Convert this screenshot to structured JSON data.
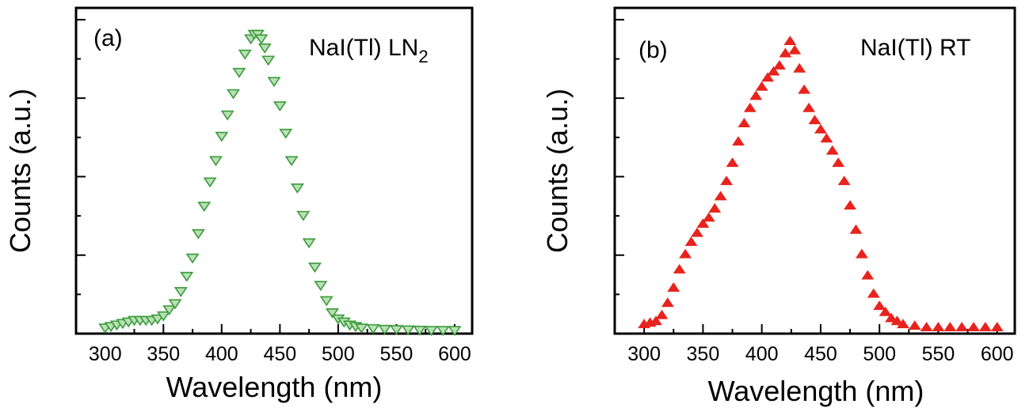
{
  "chart_data": [
    {
      "type": "scatter",
      "panel_label": "(a)",
      "title_main": "NaI(Tl) LN",
      "title_sub": "2",
      "xlabel": "Wavelength (nm)",
      "ylabel": "Counts (a.u.)",
      "xlim": [
        275,
        615
      ],
      "ylim": [
        0,
        1.07
      ],
      "xticks": [
        "300",
        "350",
        "400",
        "450",
        "500",
        "550",
        "600"
      ],
      "marker": "down-triangle",
      "color": "#3a9a3a",
      "points": [
        [
          300,
          0.02
        ],
        [
          305,
          0.025
        ],
        [
          310,
          0.03
        ],
        [
          315,
          0.035
        ],
        [
          320,
          0.04
        ],
        [
          325,
          0.045
        ],
        [
          330,
          0.045
        ],
        [
          335,
          0.045
        ],
        [
          340,
          0.045
        ],
        [
          345,
          0.05
        ],
        [
          350,
          0.06
        ],
        [
          355,
          0.08
        ],
        [
          360,
          0.1
        ],
        [
          365,
          0.14
        ],
        [
          370,
          0.19
        ],
        [
          375,
          0.25
        ],
        [
          380,
          0.33
        ],
        [
          385,
          0.42
        ],
        [
          390,
          0.5
        ],
        [
          395,
          0.57
        ],
        [
          400,
          0.65
        ],
        [
          405,
          0.72
        ],
        [
          410,
          0.79
        ],
        [
          415,
          0.86
        ],
        [
          420,
          0.92
        ],
        [
          425,
          0.97
        ],
        [
          428,
          0.985
        ],
        [
          431,
          0.985
        ],
        [
          434,
          0.97
        ],
        [
          437,
          0.94
        ],
        [
          440,
          0.9
        ],
        [
          445,
          0.83
        ],
        [
          450,
          0.75
        ],
        [
          455,
          0.66
        ],
        [
          460,
          0.57
        ],
        [
          465,
          0.48
        ],
        [
          470,
          0.39
        ],
        [
          475,
          0.3
        ],
        [
          480,
          0.22
        ],
        [
          485,
          0.16
        ],
        [
          490,
          0.11
        ],
        [
          495,
          0.07
        ],
        [
          500,
          0.05
        ],
        [
          505,
          0.04
        ],
        [
          510,
          0.03
        ],
        [
          515,
          0.025
        ],
        [
          520,
          0.02
        ],
        [
          530,
          0.018
        ],
        [
          540,
          0.016
        ],
        [
          550,
          0.015
        ],
        [
          560,
          0.014
        ],
        [
          570,
          0.013
        ],
        [
          580,
          0.012
        ],
        [
          590,
          0.012
        ],
        [
          600,
          0.012
        ]
      ]
    },
    {
      "type": "scatter",
      "panel_label": "(b)",
      "title_main": "NaI(Tl) RT",
      "title_sub": "",
      "xlabel": "Wavelength (nm)",
      "ylabel": "Counts (a.u.)",
      "xlim": [
        275,
        615
      ],
      "ylim": [
        0,
        1.07
      ],
      "xticks": [
        "300",
        "350",
        "400",
        "450",
        "500",
        "550",
        "600"
      ],
      "marker": "up-triangle",
      "color": "#e8231d",
      "points": [
        [
          300,
          0.03
        ],
        [
          305,
          0.035
        ],
        [
          310,
          0.04
        ],
        [
          315,
          0.06
        ],
        [
          320,
          0.1
        ],
        [
          325,
          0.15
        ],
        [
          330,
          0.21
        ],
        [
          335,
          0.26
        ],
        [
          340,
          0.3
        ],
        [
          345,
          0.33
        ],
        [
          350,
          0.36
        ],
        [
          355,
          0.38
        ],
        [
          360,
          0.41
        ],
        [
          365,
          0.45
        ],
        [
          370,
          0.5
        ],
        [
          375,
          0.56
        ],
        [
          380,
          0.63
        ],
        [
          385,
          0.69
        ],
        [
          390,
          0.74
        ],
        [
          395,
          0.78
        ],
        [
          400,
          0.81
        ],
        [
          405,
          0.84
        ],
        [
          410,
          0.86
        ],
        [
          415,
          0.88
        ],
        [
          420,
          0.92
        ],
        [
          424,
          0.96
        ],
        [
          428,
          0.93
        ],
        [
          432,
          0.87
        ],
        [
          436,
          0.8
        ],
        [
          440,
          0.74
        ],
        [
          445,
          0.7
        ],
        [
          450,
          0.67
        ],
        [
          455,
          0.64
        ],
        [
          460,
          0.6
        ],
        [
          465,
          0.56
        ],
        [
          470,
          0.5
        ],
        [
          475,
          0.42
        ],
        [
          480,
          0.34
        ],
        [
          485,
          0.26
        ],
        [
          490,
          0.19
        ],
        [
          495,
          0.13
        ],
        [
          500,
          0.09
        ],
        [
          505,
          0.07
        ],
        [
          510,
          0.05
        ],
        [
          515,
          0.04
        ],
        [
          520,
          0.03
        ],
        [
          530,
          0.025
        ],
        [
          540,
          0.02
        ],
        [
          550,
          0.02
        ],
        [
          560,
          0.02
        ],
        [
          570,
          0.02
        ],
        [
          580,
          0.02
        ],
        [
          590,
          0.02
        ],
        [
          600,
          0.02
        ]
      ]
    }
  ]
}
